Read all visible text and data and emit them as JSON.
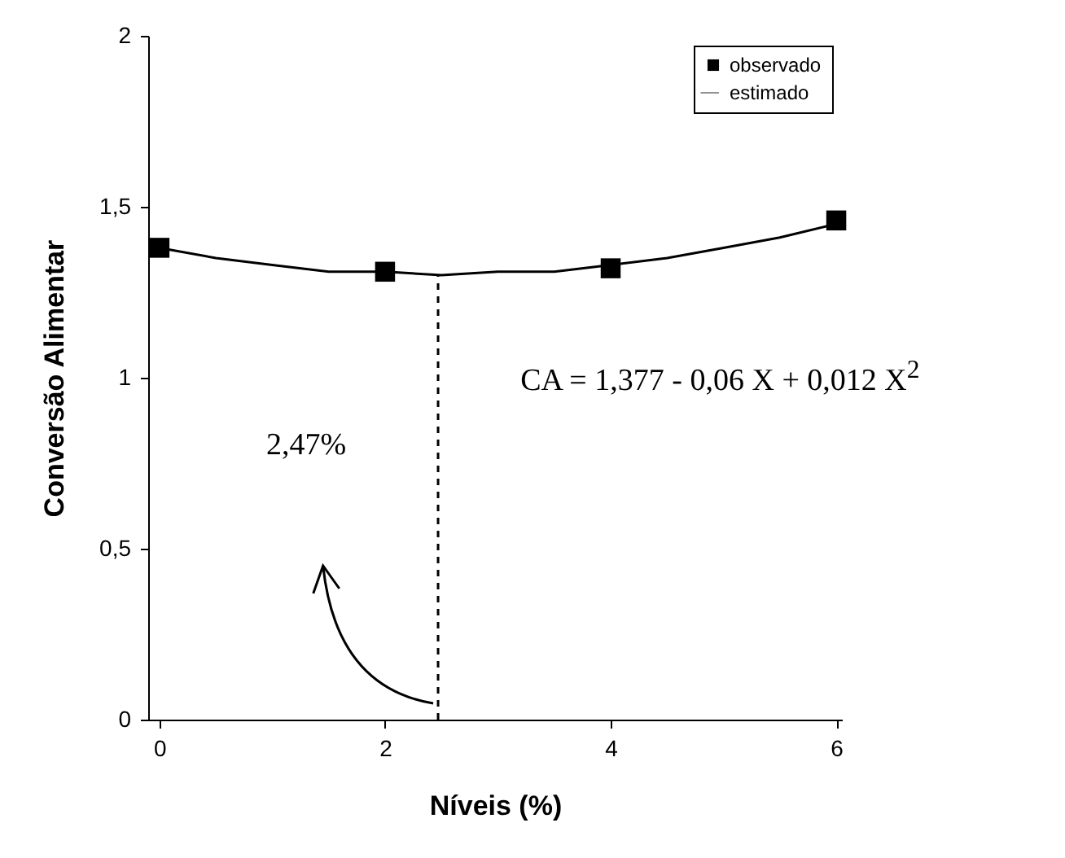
{
  "chart_data": {
    "type": "scatter",
    "xlabel": "Níveis (%)",
    "ylabel": "Conversão Alimentar",
    "xlim": [
      -0.1,
      6.05
    ],
    "ylim": [
      0,
      2
    ],
    "xticks": [
      0,
      2,
      4,
      6
    ],
    "yticks": [
      0,
      {
        "value": 0.5,
        "label": "0,5"
      },
      1,
      {
        "value": 1.5,
        "label": "1,5"
      },
      2
    ],
    "grid": false,
    "legend": "top right",
    "series": [
      {
        "name": "observado",
        "marker": "square",
        "color": "#000000",
        "x": [
          0,
          2,
          4,
          6
        ],
        "values": [
          1.38,
          1.31,
          1.32,
          1.46
        ]
      },
      {
        "name": "estimado",
        "type": "line",
        "marker": "none",
        "line_style": "solid",
        "color": "#000000",
        "x": [
          0,
          0.5,
          1,
          1.5,
          2,
          2.5,
          3,
          3.5,
          4,
          4.5,
          5,
          5.5,
          6
        ],
        "values": [
          1.38,
          1.35,
          1.33,
          1.31,
          1.31,
          1.3,
          1.31,
          1.31,
          1.33,
          1.35,
          1.38,
          1.41,
          1.45
        ]
      }
    ],
    "ref_lines": [
      {
        "axis": "x",
        "value": 2.47,
        "line_style": "dashed",
        "color": "#000000"
      }
    ],
    "annotations": [
      "CA = 1,377 - 0,06 X + 0,012 X$^{2}$",
      "2,47%"
    ]
  }
}
